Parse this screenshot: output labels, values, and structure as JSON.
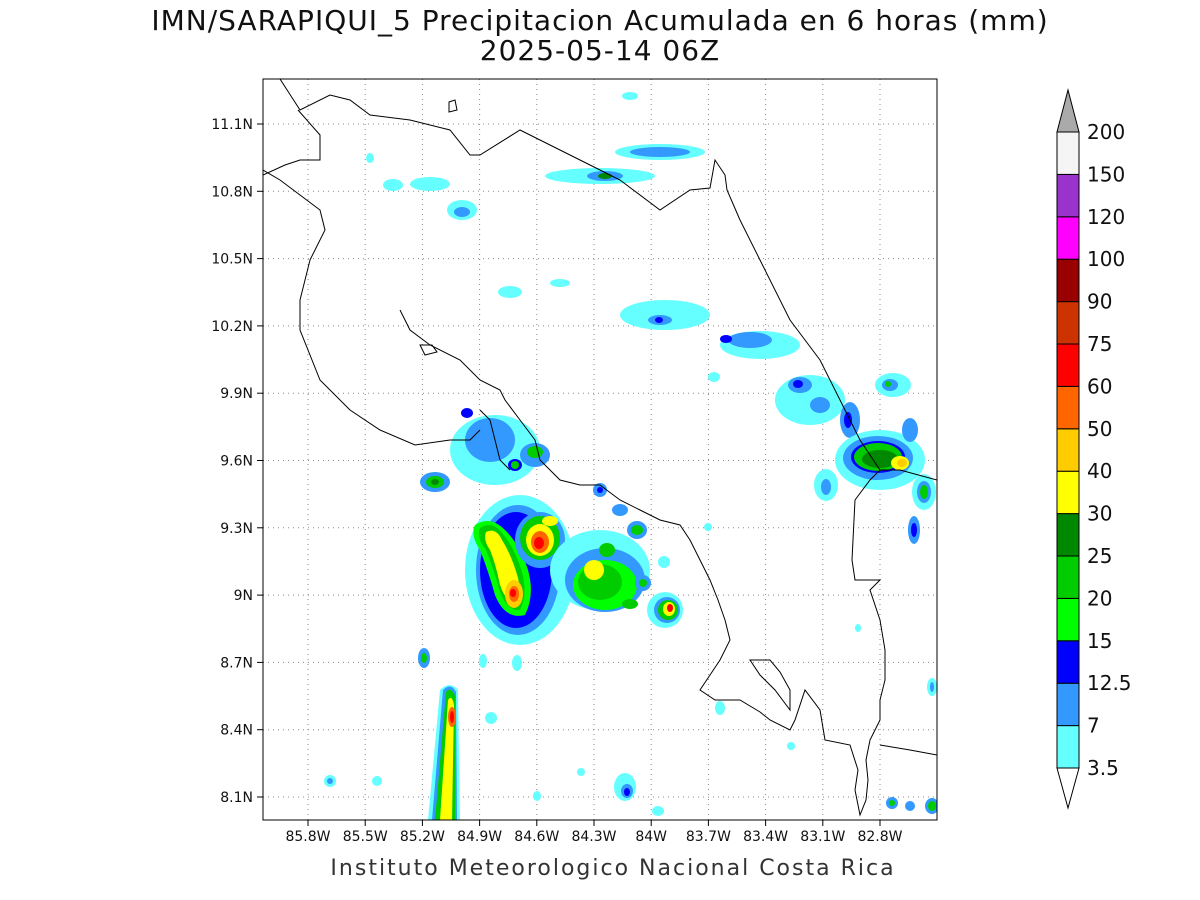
{
  "header": {
    "title_line1": "IMN/SARAPIQUI_5 Precipitacion Acumulada en 6 horas (mm)",
    "title_line2": "2025-05-14 06Z"
  },
  "footer": {
    "credit": "Instituto Meteorologico Nacional Costa Rica"
  },
  "axes": {
    "lat_labels": [
      "11.1N",
      "10.8N",
      "10.5N",
      "10.2N",
      "9.9N",
      "9.6N",
      "9.3N",
      "9N",
      "8.7N",
      "8.4N",
      "8.1N"
    ],
    "lon_labels": [
      "85.8W",
      "85.5W",
      "85.2W",
      "84.9W",
      "84.6W",
      "84.3W",
      "84W",
      "83.7W",
      "83.4W",
      "83.1W",
      "82.8W"
    ]
  },
  "colorbar": {
    "levels": [
      "3.5",
      "7",
      "12.5",
      "15",
      "20",
      "25",
      "30",
      "40",
      "50",
      "60",
      "75",
      "90",
      "100",
      "120",
      "150",
      "200"
    ],
    "colors": [
      "#66ffff",
      "#3399ff",
      "#0000ff",
      "#00ff00",
      "#00cc00",
      "#008800",
      "#ffff00",
      "#ffcc00",
      "#ff6600",
      "#ff0000",
      "#cc3300",
      "#990000",
      "#ff00ff",
      "#9933cc",
      "#f5f5f5",
      "#aaaaaa"
    ]
  }
}
